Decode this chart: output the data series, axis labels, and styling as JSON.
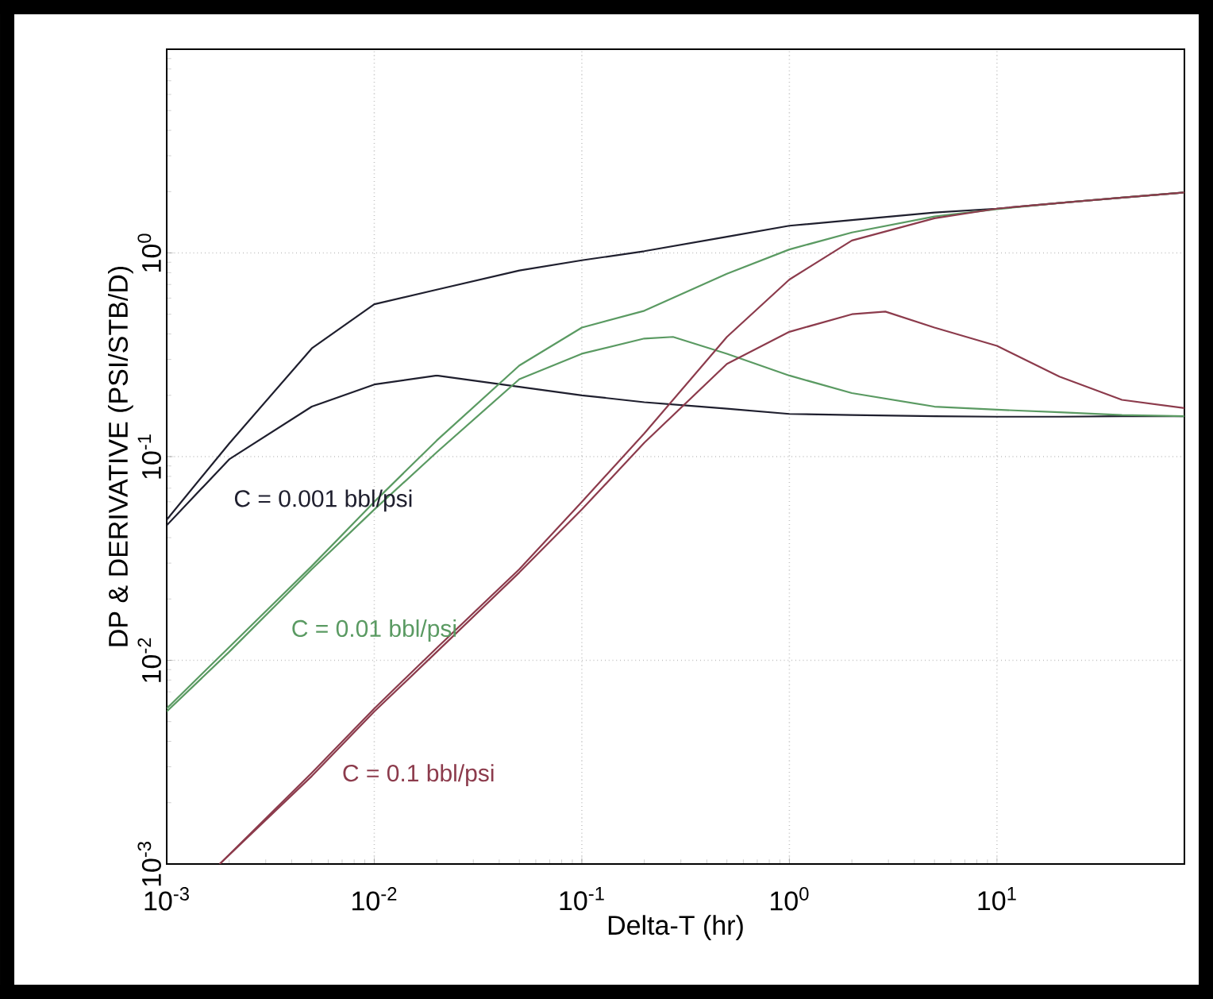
{
  "chart_data": {
    "type": "line",
    "xlabel": "Delta-T (hr)",
    "ylabel": "DP & DERIVATIVE (PSI/STB/D)",
    "log": "xy",
    "grid": true,
    "line_style": "solid",
    "xlim": [
      0.001,
      80
    ],
    "ylim": [
      0.001,
      10
    ],
    "xticks": [
      {
        "value": 0.001,
        "label": "10$^{-3}$"
      },
      {
        "value": 0.01,
        "label": "10$^{-2}$"
      },
      {
        "value": 0.1,
        "label": "10$^{-1}$"
      },
      {
        "value": 1,
        "label": "10$^{0}$"
      },
      {
        "value": 10,
        "label": "10$^{1}$"
      }
    ],
    "yticks": [
      {
        "value": 0.001,
        "label": "10$^{-3}$"
      },
      {
        "value": 0.01,
        "label": "10$^{-2}$"
      },
      {
        "value": 0.1,
        "label": "10$^{-1}$"
      },
      {
        "value": 1,
        "label": "10$^{0}$"
      },
      {
        "value": 10,
        "label": null
      }
    ],
    "series": [
      {
        "color": "#1f1f2e",
        "x": [
          0.001,
          0.002,
          0.005,
          0.01,
          0.02,
          0.05,
          0.1,
          0.2,
          0.5,
          1,
          2,
          5,
          10,
          20,
          40,
          80
        ],
        "values": [
          0.049,
          0.116,
          0.34,
          0.56,
          0.66,
          0.82,
          0.92,
          1.02,
          1.2,
          1.36,
          1.45,
          1.58,
          1.65,
          1.76,
          1.87,
          1.98
        ]
      },
      {
        "color": "#1f1f2e",
        "x": [
          0.001,
          0.002,
          0.005,
          0.01,
          0.02,
          0.05,
          0.1,
          0.2,
          0.5,
          1,
          2,
          5,
          10,
          20,
          40,
          80
        ],
        "values": [
          0.046,
          0.097,
          0.176,
          0.226,
          0.25,
          0.22,
          0.2,
          0.185,
          0.172,
          0.162,
          0.16,
          0.158,
          0.157,
          0.157,
          0.158,
          0.158
        ]
      },
      {
        "color": "#5a9a62",
        "x": [
          0.001,
          0.002,
          0.005,
          0.01,
          0.02,
          0.05,
          0.1,
          0.2,
          0.5,
          1,
          2,
          5,
          10,
          20,
          40,
          80
        ],
        "values": [
          0.0058,
          0.0116,
          0.029,
          0.06,
          0.12,
          0.28,
          0.43,
          0.52,
          0.79,
          1.04,
          1.26,
          1.51,
          1.64,
          1.76,
          1.87,
          1.98
        ]
      },
      {
        "color": "#5a9a62",
        "x": [
          0.001,
          0.002,
          0.005,
          0.01,
          0.02,
          0.05,
          0.1,
          0.2,
          0.275,
          0.5,
          1,
          2,
          5,
          10,
          20,
          40,
          80
        ],
        "values": [
          0.0056,
          0.011,
          0.028,
          0.055,
          0.105,
          0.24,
          0.32,
          0.38,
          0.387,
          0.32,
          0.25,
          0.205,
          0.176,
          0.17,
          0.165,
          0.16,
          0.158
        ]
      },
      {
        "color": "#8c3b4c",
        "x": [
          0.0018,
          0.005,
          0.01,
          0.02,
          0.05,
          0.1,
          0.2,
          0.5,
          1,
          2,
          5,
          10,
          20,
          40,
          80
        ],
        "values": [
          0.001,
          0.0028,
          0.0058,
          0.0115,
          0.028,
          0.06,
          0.13,
          0.387,
          0.74,
          1.15,
          1.48,
          1.65,
          1.76,
          1.87,
          1.98
        ]
      },
      {
        "color": "#8c3b4c",
        "x": [
          0.0018,
          0.005,
          0.01,
          0.02,
          0.05,
          0.1,
          0.2,
          0.5,
          1,
          2,
          2.9,
          5,
          10,
          20,
          40,
          80
        ],
        "values": [
          0.001,
          0.0027,
          0.0056,
          0.011,
          0.027,
          0.055,
          0.117,
          0.285,
          0.41,
          0.5,
          0.515,
          0.43,
          0.35,
          0.247,
          0.19,
          0.173
        ]
      }
    ],
    "annotations": [
      "C = 0.001 bbl/psi",
      "C = 0.01 bbl/psi",
      "C = 0.1 bbl/psi"
    ]
  }
}
